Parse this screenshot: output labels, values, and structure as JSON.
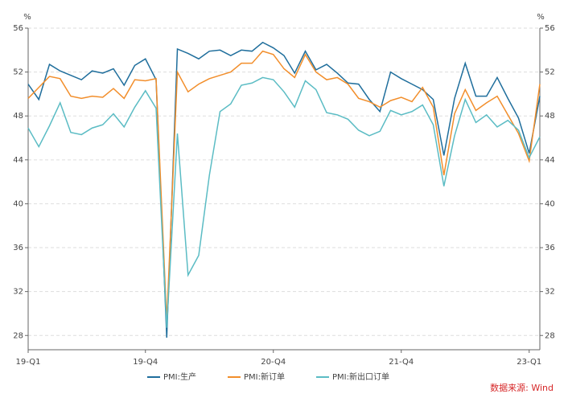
{
  "chart_data": {
    "type": "line",
    "y_unit": "%",
    "source": "数据来源: Wind",
    "categories": [
      "19-Q1",
      null,
      null,
      null,
      null,
      null,
      null,
      null,
      null,
      null,
      null,
      "19-Q4",
      null,
      null,
      null,
      null,
      null,
      null,
      null,
      null,
      null,
      null,
      null,
      "20-Q4",
      null,
      null,
      null,
      null,
      null,
      null,
      null,
      null,
      null,
      null,
      null,
      "21-Q4",
      null,
      null,
      null,
      null,
      null,
      null,
      null,
      null,
      null,
      null,
      null,
      "23-Q1",
      null
    ],
    "series": [
      {
        "name": "PMI:生产",
        "color": "#1f6e9c",
        "values": [
          50.9,
          49.5,
          52.7,
          52.1,
          51.7,
          51.3,
          52.1,
          51.9,
          52.3,
          50.8,
          52.6,
          53.2,
          51.3,
          27.8,
          54.1,
          53.7,
          53.2,
          53.9,
          54.0,
          53.5,
          54.0,
          53.9,
          54.7,
          54.2,
          53.5,
          51.9,
          53.9,
          52.2,
          52.7,
          51.9,
          51.0,
          50.9,
          49.5,
          48.4,
          52.0,
          51.4,
          50.9,
          50.4,
          49.5,
          44.4,
          49.6,
          52.8,
          49.8,
          49.8,
          51.5,
          49.6,
          47.8,
          44.6,
          49.8
        ]
      },
      {
        "name": "PMI:新订单",
        "color": "#f28e2b",
        "values": [
          49.6,
          50.6,
          51.6,
          51.4,
          49.8,
          49.6,
          49.8,
          49.7,
          50.5,
          49.6,
          51.3,
          51.2,
          51.4,
          29.3,
          52.0,
          50.2,
          50.9,
          51.4,
          51.7,
          52.0,
          52.8,
          52.8,
          53.9,
          53.6,
          52.3,
          51.5,
          53.6,
          52.0,
          51.3,
          51.5,
          50.9,
          49.6,
          49.3,
          48.8,
          49.4,
          49.7,
          49.3,
          50.6,
          48.8,
          42.6,
          48.2,
          50.4,
          48.5,
          49.2,
          49.8,
          48.1,
          46.4,
          43.9,
          50.9
        ]
      },
      {
        "name": "PMI:新出口订单",
        "color": "#5bbcc4",
        "values": [
          46.9,
          45.2,
          47.1,
          49.2,
          46.5,
          46.3,
          46.9,
          47.2,
          48.2,
          47.0,
          48.8,
          50.3,
          48.7,
          28.7,
          46.4,
          33.5,
          35.3,
          42.6,
          48.4,
          49.1,
          50.8,
          51.0,
          51.5,
          51.3,
          50.2,
          48.8,
          51.2,
          50.4,
          48.3,
          48.1,
          47.7,
          46.7,
          46.2,
          46.6,
          48.5,
          48.1,
          48.4,
          49.0,
          47.2,
          41.6,
          46.2,
          49.5,
          47.4,
          48.1,
          47.0,
          47.6,
          46.7,
          44.2,
          46.1
        ]
      }
    ],
    "ylim": [
      26.7,
      56
    ],
    "yticks": [
      28,
      32,
      36,
      40,
      44,
      48,
      52,
      56
    ],
    "grid": true
  }
}
